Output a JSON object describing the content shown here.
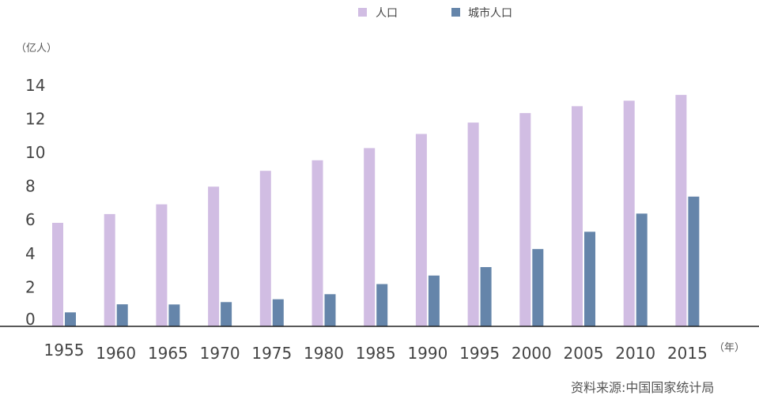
{
  "chart_data": {
    "type": "bar",
    "title": "",
    "xlabel": "",
    "ylabel": "",
    "y_unit_label": "（亿人）",
    "x_unit_label": "（年）",
    "categories": [
      "1955",
      "1960",
      "1965",
      "1970",
      "1975",
      "1980",
      "1985",
      "1990",
      "1995",
      "2000",
      "2005",
      "2010",
      "2015"
    ],
    "series": [
      {
        "name": "人口",
        "color": "#d1bde3",
        "values": [
          6.15,
          6.67,
          7.25,
          8.3,
          9.24,
          9.87,
          10.59,
          11.43,
          12.11,
          12.67,
          13.08,
          13.41,
          13.75
        ]
      },
      {
        "name": "城市人口",
        "color": "#6585aa",
        "values": [
          0.83,
          1.31,
          1.3,
          1.44,
          1.61,
          1.91,
          2.51,
          3.02,
          3.52,
          4.59,
          5.62,
          6.7,
          7.71
        ]
      }
    ],
    "yticks": [
      "0",
      "2",
      "4",
      "6",
      "8",
      "10",
      "12",
      "14"
    ],
    "ylim": [
      0,
      15
    ],
    "legend": "top",
    "grid": false,
    "source": "资料来源:中国国家统计局"
  }
}
